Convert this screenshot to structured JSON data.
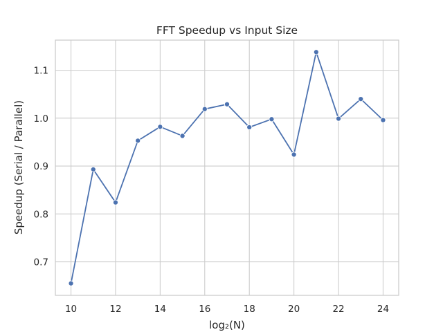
{
  "chart_data": {
    "type": "line",
    "title": "FFT Speedup vs Input Size",
    "xlabel": "log₂(N)",
    "ylabel": "Speedup (Serial / Parallel)",
    "x": [
      10,
      11,
      12,
      13,
      14,
      15,
      16,
      17,
      18,
      19,
      20,
      21,
      22,
      23,
      24
    ],
    "series": [
      {
        "values": [
          0.655,
          0.893,
          0.824,
          0.953,
          0.982,
          0.963,
          1.019,
          1.029,
          0.981,
          0.998,
          0.924,
          1.138,
          0.999,
          1.04,
          0.996
        ],
        "color": "#4c72b0",
        "marker": "circle"
      }
    ],
    "xlim": [
      9.3,
      24.7
    ],
    "ylim": [
      0.63,
      1.163
    ],
    "xticks": [
      10,
      12,
      14,
      16,
      18,
      20,
      22,
      24
    ],
    "yticks": [
      0.7,
      0.8,
      0.9,
      1.0,
      1.1
    ],
    "ytick_labels": [
      "0.7",
      "0.8",
      "0.9",
      "1.0",
      "1.1"
    ],
    "grid": true
  }
}
